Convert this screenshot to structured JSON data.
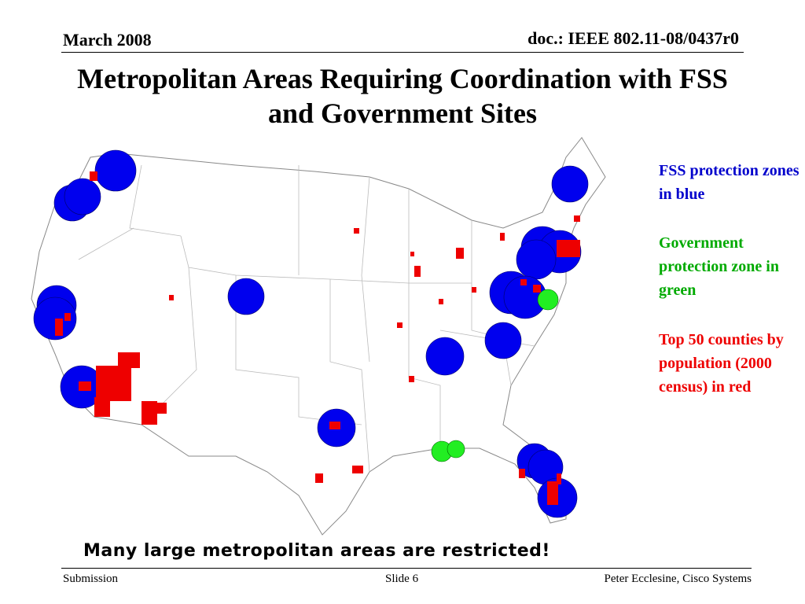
{
  "header": {
    "date": "March 2008",
    "doc": "doc.: IEEE 802.11-08/0437r0"
  },
  "title": "Metropolitan Areas Requiring Coordination with FSS and Government Sites",
  "legend": {
    "fss": "FSS protection zones in blue",
    "government": "Government protection zone in green",
    "counties": "Top 50 counties by population (2000 census) in red"
  },
  "caption": "Many large metropolitan areas are restricted!",
  "footer": {
    "left": "Submission",
    "center": "Slide 6",
    "right": "Peter Ecclesine, Cisco Systems"
  }
}
